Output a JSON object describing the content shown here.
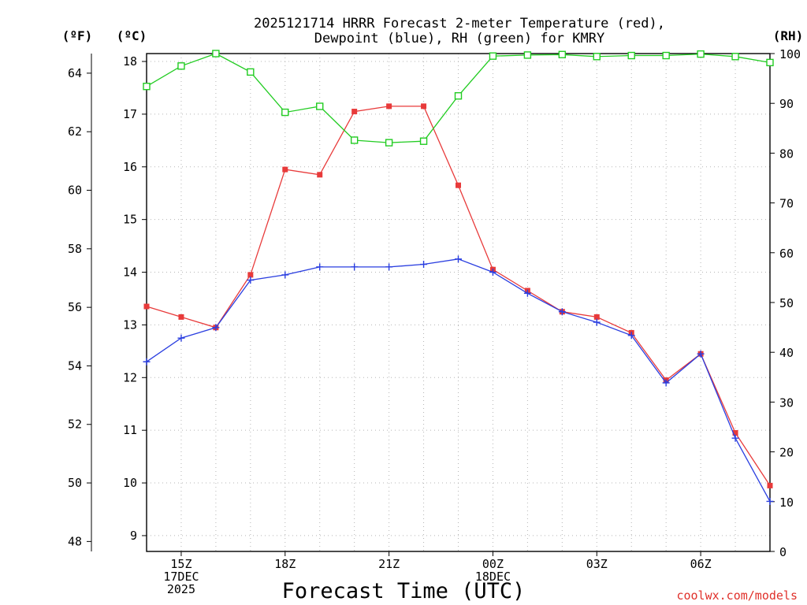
{
  "chart_data": {
    "type": "line",
    "title_lines": [
      "2025121714 HRRR Forecast 2-meter Temperature (red),",
      "Dewpoint (blue), RH (green) for KMRY"
    ],
    "xlabel": "Forecast Time (UTC)",
    "credit": "coolwx.com/models",
    "units": {
      "fahrenheit": "(ºF)",
      "celsius": "(ºC)",
      "rh": "(RH)"
    },
    "x_hours": [
      14,
      15,
      16,
      17,
      18,
      19,
      20,
      21,
      22,
      23,
      24,
      25,
      26,
      27,
      28,
      29,
      30,
      31,
      32
    ],
    "xlim": [
      14,
      32
    ],
    "x_ticks": [
      {
        "x": 15,
        "lines": [
          "15Z",
          "17DEC",
          "2025"
        ]
      },
      {
        "x": 18,
        "lines": [
          "18Z"
        ]
      },
      {
        "x": 21,
        "lines": [
          "21Z"
        ]
      },
      {
        "x": 24,
        "lines": [
          "00Z",
          "18DEC"
        ]
      },
      {
        "x": 27,
        "lines": [
          "03Z"
        ]
      },
      {
        "x": 30,
        "lines": [
          "06Z"
        ]
      }
    ],
    "celsius_axis": {
      "ylim": [
        8.7,
        18.15
      ],
      "ticks": [
        9,
        10,
        11,
        12,
        13,
        14,
        15,
        16,
        17,
        18
      ]
    },
    "fahrenheit_axis": {
      "ticks": [
        48,
        50,
        52,
        54,
        56,
        58,
        60,
        62,
        64
      ]
    },
    "rh_axis": {
      "ylim": [
        0,
        100
      ],
      "ticks": [
        0,
        10,
        20,
        30,
        40,
        50,
        60,
        70,
        80,
        90,
        100
      ]
    },
    "series": [
      {
        "name": "Temperature",
        "axis": "celsius",
        "color": "#e83a3a",
        "marker": "filled-square",
        "values": [
          13.35,
          13.15,
          12.95,
          13.95,
          15.95,
          15.85,
          17.05,
          17.15,
          17.15,
          15.65,
          14.05,
          13.65,
          13.25,
          13.15,
          12.85,
          11.95,
          12.45,
          10.95,
          9.95
        ]
      },
      {
        "name": "Dewpoint",
        "axis": "celsius",
        "color": "#2a3ee0",
        "marker": "plus",
        "values": [
          12.3,
          12.75,
          12.95,
          13.85,
          13.95,
          14.1,
          14.1,
          14.1,
          14.15,
          14.25,
          14.0,
          13.6,
          13.25,
          13.05,
          12.8,
          11.9,
          12.45,
          10.85,
          9.65
        ]
      },
      {
        "name": "RH",
        "axis": "rh",
        "color": "#22cc22",
        "marker": "open-square",
        "values": [
          93.4,
          97.5,
          100,
          96.3,
          88.2,
          89.4,
          82.6,
          82.1,
          82.4,
          91.5,
          99.5,
          99.7,
          99.8,
          99.4,
          99.6,
          99.6,
          99.9,
          99.4,
          98.2
        ]
      }
    ],
    "grid": true
  }
}
